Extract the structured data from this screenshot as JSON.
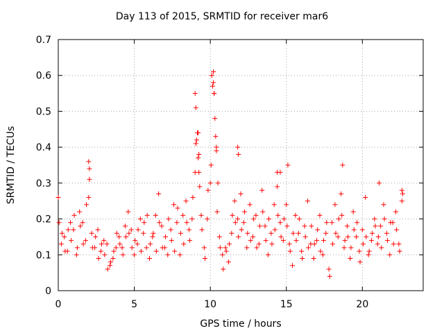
{
  "chart_data": {
    "type": "scatter",
    "title": "Day 113 of 2015, SRMTID for receiver mar6",
    "xlabel": "GPS time / hours",
    "ylabel": "SRMTID / TECUs",
    "xlim": [
      0,
      24
    ],
    "ylim": [
      0,
      0.7
    ],
    "xticks": [
      0,
      5,
      10,
      15,
      20
    ],
    "xtick_labels": [
      "0",
      "5",
      "10",
      "15",
      "20"
    ],
    "yticks": [
      0,
      0.1,
      0.2,
      0.3,
      0.4,
      0.5,
      0.6,
      0.7
    ],
    "ytick_labels": [
      "0",
      "0.1",
      "0.2",
      "0.3",
      "0.4",
      "0.5",
      "0.6",
      "0.7"
    ],
    "grid": true,
    "marker": "+",
    "color": "#ff0000",
    "series": [
      {
        "name": "SRMTID",
        "x": [
          0.0,
          0.2,
          0.4,
          0.6,
          0.8,
          1.0,
          1.2,
          1.4,
          1.6,
          1.8,
          2.0,
          2.2,
          2.4,
          2.6,
          2.8,
          3.0,
          3.2,
          3.4,
          3.6,
          3.8,
          4.0,
          4.2,
          4.4,
          4.6,
          4.8,
          5.0,
          5.2,
          5.4,
          5.6,
          5.8,
          6.0,
          6.2,
          6.4,
          6.6,
          6.8,
          7.0,
          7.2,
          7.4,
          7.6,
          7.8,
          8.0,
          8.2,
          8.4,
          8.6,
          8.8,
          9.0,
          9.2,
          9.4,
          9.6,
          9.8,
          10.0,
          10.2,
          10.4,
          10.6,
          10.8,
          11.0,
          11.2,
          11.4,
          11.6,
          11.8,
          12.0,
          12.2,
          12.4,
          12.6,
          12.8,
          13.0,
          13.2,
          13.4,
          13.6,
          13.8,
          14.0,
          14.2,
          14.4,
          14.6,
          14.8,
          15.0,
          15.2,
          15.4,
          15.6,
          15.8,
          16.0,
          16.2,
          16.4,
          16.6,
          16.8,
          17.0,
          17.2,
          17.4,
          17.6,
          17.8,
          18.0,
          18.2,
          18.4,
          18.6,
          18.8,
          19.0,
          19.2,
          19.4,
          19.6,
          19.8,
          20.0,
          20.2,
          20.4,
          20.6,
          20.8,
          21.0,
          21.2,
          21.4,
          21.6,
          21.8,
          22.0,
          22.2,
          22.4,
          22.6,
          0.05,
          0.25,
          0.45,
          0.65,
          0.85,
          1.05,
          1.25,
          1.45,
          1.65,
          1.85,
          2.05,
          2.25,
          2.45,
          2.65,
          2.85,
          3.05,
          3.25,
          3.45,
          3.65,
          3.85,
          4.05,
          4.25,
          4.45,
          4.65,
          4.85,
          5.05,
          5.25,
          5.45,
          5.65,
          5.85,
          6.05,
          6.25,
          6.45,
          6.65,
          6.85,
          7.05,
          7.25,
          7.45,
          7.65,
          7.85,
          8.05,
          8.25,
          8.45,
          8.65,
          8.85,
          9.05,
          9.25,
          9.45,
          9.65,
          9.85,
          10.05,
          10.25,
          10.45,
          10.65,
          10.85,
          11.05,
          11.25,
          11.45,
          11.65,
          11.85,
          12.05,
          12.25,
          12.45,
          12.65,
          12.85,
          13.05,
          13.25,
          13.45,
          13.65,
          13.85,
          14.05,
          14.25,
          14.45,
          14.65,
          14.85,
          15.05,
          15.25,
          15.45,
          15.65,
          15.85,
          16.05,
          16.25,
          16.45,
          16.65,
          16.85,
          17.05,
          17.25,
          17.45,
          17.65,
          17.85,
          18.05,
          18.25,
          18.45,
          18.65,
          18.85,
          19.05,
          19.25,
          19.45,
          19.65,
          19.85,
          20.05,
          20.25,
          20.45,
          20.65,
          20.85,
          21.05,
          21.25,
          21.45,
          21.65,
          21.85,
          22.05,
          22.25,
          22.45,
          22.65,
          9.0,
          9.05,
          9.1,
          9.15,
          9.2,
          9.25,
          9.3,
          10.1,
          10.15,
          10.2,
          10.25,
          10.3,
          10.35,
          10.4,
          10.5,
          2.0,
          2.05,
          11.8,
          11.85,
          14.4,
          14.6,
          15.1,
          18.7,
          21.1,
          22.6
        ],
        "y": [
          0.26,
          0.13,
          0.15,
          0.11,
          0.19,
          0.17,
          0.1,
          0.22,
          0.19,
          0.14,
          0.26,
          0.16,
          0.12,
          0.17,
          0.11,
          0.14,
          0.13,
          0.07,
          0.09,
          0.12,
          0.15,
          0.12,
          0.18,
          0.22,
          0.17,
          0.1,
          0.13,
          0.2,
          0.16,
          0.12,
          0.09,
          0.15,
          0.21,
          0.27,
          0.18,
          0.12,
          0.1,
          0.17,
          0.24,
          0.19,
          0.1,
          0.21,
          0.25,
          0.17,
          0.2,
          0.33,
          0.44,
          0.21,
          0.12,
          0.2,
          0.3,
          0.58,
          0.4,
          0.15,
          0.1,
          0.12,
          0.08,
          0.16,
          0.25,
          0.2,
          0.27,
          0.19,
          0.12,
          0.24,
          0.15,
          0.21,
          0.13,
          0.28,
          0.18,
          0.1,
          0.16,
          0.24,
          0.29,
          0.19,
          0.14,
          0.24,
          0.13,
          0.07,
          0.21,
          0.16,
          0.11,
          0.18,
          0.25,
          0.13,
          0.09,
          0.14,
          0.21,
          0.1,
          0.16,
          0.06,
          0.19,
          0.24,
          0.15,
          0.27,
          0.12,
          0.18,
          0.09,
          0.22,
          0.15,
          0.11,
          0.17,
          0.26,
          0.1,
          0.14,
          0.2,
          0.13,
          0.18,
          0.24,
          0.16,
          0.1,
          0.19,
          0.22,
          0.13,
          0.25,
          0.19,
          0.16,
          0.11,
          0.17,
          0.14,
          0.21,
          0.12,
          0.18,
          0.13,
          0.24,
          0.34,
          0.12,
          0.15,
          0.09,
          0.13,
          0.1,
          0.06,
          0.08,
          0.11,
          0.16,
          0.13,
          0.1,
          0.15,
          0.16,
          0.12,
          0.14,
          0.17,
          0.11,
          0.19,
          0.21,
          0.13,
          0.16,
          0.11,
          0.19,
          0.12,
          0.15,
          0.2,
          0.14,
          0.11,
          0.23,
          0.16,
          0.13,
          0.19,
          0.14,
          0.26,
          0.41,
          0.38,
          0.17,
          0.09,
          0.28,
          0.35,
          0.55,
          0.22,
          0.12,
          0.06,
          0.11,
          0.13,
          0.21,
          0.19,
          0.15,
          0.17,
          0.22,
          0.16,
          0.14,
          0.2,
          0.12,
          0.18,
          0.22,
          0.14,
          0.2,
          0.13,
          0.17,
          0.21,
          0.15,
          0.2,
          0.18,
          0.11,
          0.16,
          0.14,
          0.2,
          0.09,
          0.15,
          0.12,
          0.18,
          0.13,
          0.17,
          0.11,
          0.14,
          0.19,
          0.04,
          0.13,
          0.16,
          0.2,
          0.21,
          0.14,
          0.15,
          0.12,
          0.17,
          0.19,
          0.08,
          0.13,
          0.15,
          0.11,
          0.16,
          0.18,
          0.15,
          0.12,
          0.2,
          0.14,
          0.19,
          0.13,
          0.17,
          0.11,
          0.27,
          0.55,
          0.51,
          0.42,
          0.44,
          0.37,
          0.33,
          0.29,
          0.6,
          0.57,
          0.61,
          0.55,
          0.48,
          0.43,
          0.39,
          0.3,
          0.36,
          0.31,
          0.4,
          0.38,
          0.33,
          0.33,
          0.35,
          0.35,
          0.3,
          0.28
        ]
      }
    ]
  }
}
